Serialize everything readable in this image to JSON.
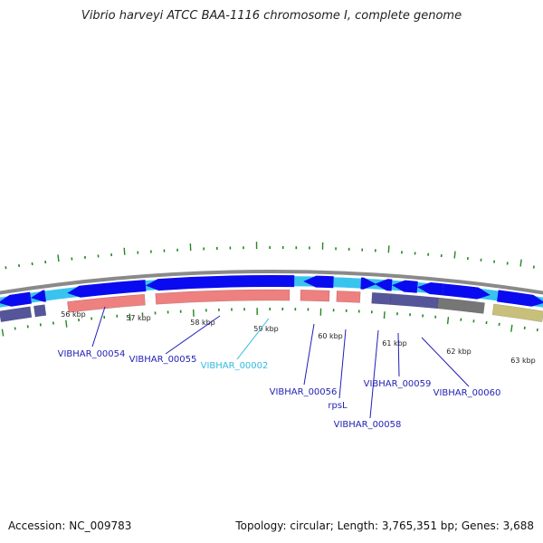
{
  "title": "Vibrio harveyi ATCC BAA-1116 chromosome I, complete genome",
  "footer": {
    "accession": "Accession: NC_009783",
    "summary": "Topology: circular; Length: 3,765,351 bp; Genes: 3,688"
  },
  "ticks": [
    "56 kbp",
    "57 kbp",
    "58 kbp",
    "59 kbp",
    "60 kbp",
    "61 kbp",
    "62 kbp",
    "63 kbp"
  ],
  "gene_labels": [
    {
      "text": "VIBHAR_00054",
      "color": "#1f1fb4"
    },
    {
      "text": "VIBHAR_00055",
      "color": "#1f1fb4"
    },
    {
      "text": "VIBHAR_00002",
      "color": "#33bbe0"
    },
    {
      "text": "VIBHAR_00056",
      "color": "#1f1fb4"
    },
    {
      "text": "rpsL",
      "color": "#1f1fb4"
    },
    {
      "text": "VIBHAR_00058",
      "color": "#1f1fb4"
    },
    {
      "text": "VIBHAR_00059",
      "color": "#1f1fb4"
    },
    {
      "text": "VIBHAR_00060",
      "color": "#1f1fb4"
    }
  ],
  "colors": {
    "backbone": "#8a8a8a",
    "cds_forward": "#0a0af0",
    "cds_reverse_light": "#38c4ee",
    "rrna": "#ee8080",
    "gene_dark": "#55559a",
    "gene_gray": "#767676",
    "gene_olive": "#c8c07a",
    "tick_mark": "#228822",
    "label_line": "#1f1fb4"
  }
}
